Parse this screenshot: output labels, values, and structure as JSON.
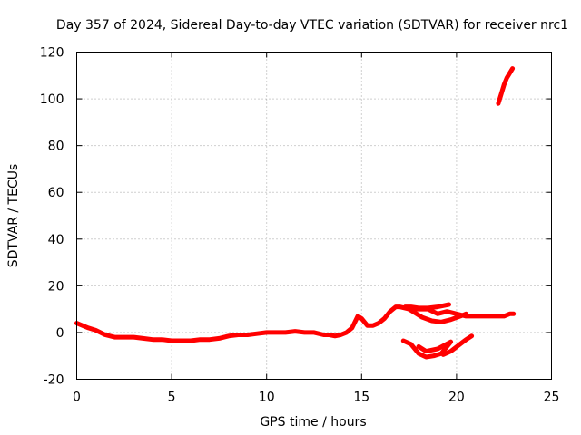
{
  "chart_data": {
    "type": "line",
    "title": "Day 357 of 2024, Sidereal Day-to-day VTEC variation (SDTVAR) for receiver nrc1",
    "xlabel": "GPS time / hours",
    "ylabel": "SDTVAR / TECUs",
    "xlim": [
      0,
      25
    ],
    "ylim": [
      -20,
      120
    ],
    "xticks": [
      0,
      5,
      10,
      15,
      20,
      25
    ],
    "yticks": [
      -20,
      0,
      20,
      40,
      60,
      80,
      100,
      120
    ],
    "grid": true,
    "series_color": "#ff0000",
    "series": [
      {
        "name": "main-trace",
        "x": [
          0,
          0.3,
          0.6,
          1.0,
          1.5,
          2.0,
          2.5,
          3.0,
          3.5,
          4.0,
          4.5,
          5.0,
          5.5,
          6.0,
          6.5,
          7.0,
          7.5,
          8.0,
          8.5,
          9.0,
          9.5,
          10.0,
          10.5,
          11.0,
          11.5,
          12.0,
          12.5,
          13.0,
          13.3,
          13.6,
          13.9,
          14.2,
          14.5,
          14.8,
          15.0,
          15.3,
          15.6,
          15.9,
          16.2,
          16.5,
          16.8,
          17.0,
          17.5,
          18.0,
          18.5,
          19.0,
          19.5,
          20.0,
          20.5,
          21.0,
          21.5,
          22.0,
          22.5,
          22.8,
          23.0
        ],
        "y": [
          4,
          3,
          2,
          1,
          -1,
          -2,
          -2,
          -2,
          -2.5,
          -3,
          -3,
          -3.5,
          -3.5,
          -3.5,
          -3,
          -3,
          -2.5,
          -1.5,
          -1,
          -1,
          -0.5,
          0,
          0,
          0,
          0.5,
          0,
          0,
          -1,
          -1,
          -1.5,
          -1,
          0,
          2,
          7,
          6,
          3,
          3,
          4,
          6,
          9,
          11,
          11,
          10,
          10,
          10,
          8,
          9,
          8,
          7,
          7,
          7,
          7,
          7,
          8,
          8
        ]
      },
      {
        "name": "loop-trace",
        "x": [
          19.6,
          19.3,
          19.0,
          18.5,
          18.0,
          17.6,
          17.3,
          17.7,
          18.2,
          18.7,
          19.2,
          19.7,
          20.2,
          20.5
        ],
        "y": [
          12,
          11.5,
          11,
          10.5,
          10.5,
          11,
          11,
          9,
          6.5,
          5,
          4.5,
          5.5,
          7,
          8
        ]
      },
      {
        "name": "low-trace",
        "x": [
          17.2,
          17.6,
          18.0,
          18.4,
          18.8,
          19.2,
          19.4,
          19.7,
          19.0,
          18.4,
          18.0
        ],
        "y": [
          -3.5,
          -5,
          -9,
          -10.5,
          -10,
          -9,
          -7,
          -4,
          -7,
          -8,
          -6
        ]
      },
      {
        "name": "low-trace-2",
        "x": [
          19.3,
          19.7,
          20.1,
          20.5,
          20.8
        ],
        "y": [
          -9.5,
          -8,
          -5.5,
          -3,
          -1.5
        ]
      },
      {
        "name": "high-trace",
        "x": [
          22.2,
          22.35,
          22.5,
          22.65,
          22.8,
          22.95
        ],
        "y": [
          98,
          102,
          106,
          109,
          111,
          113
        ]
      }
    ]
  }
}
